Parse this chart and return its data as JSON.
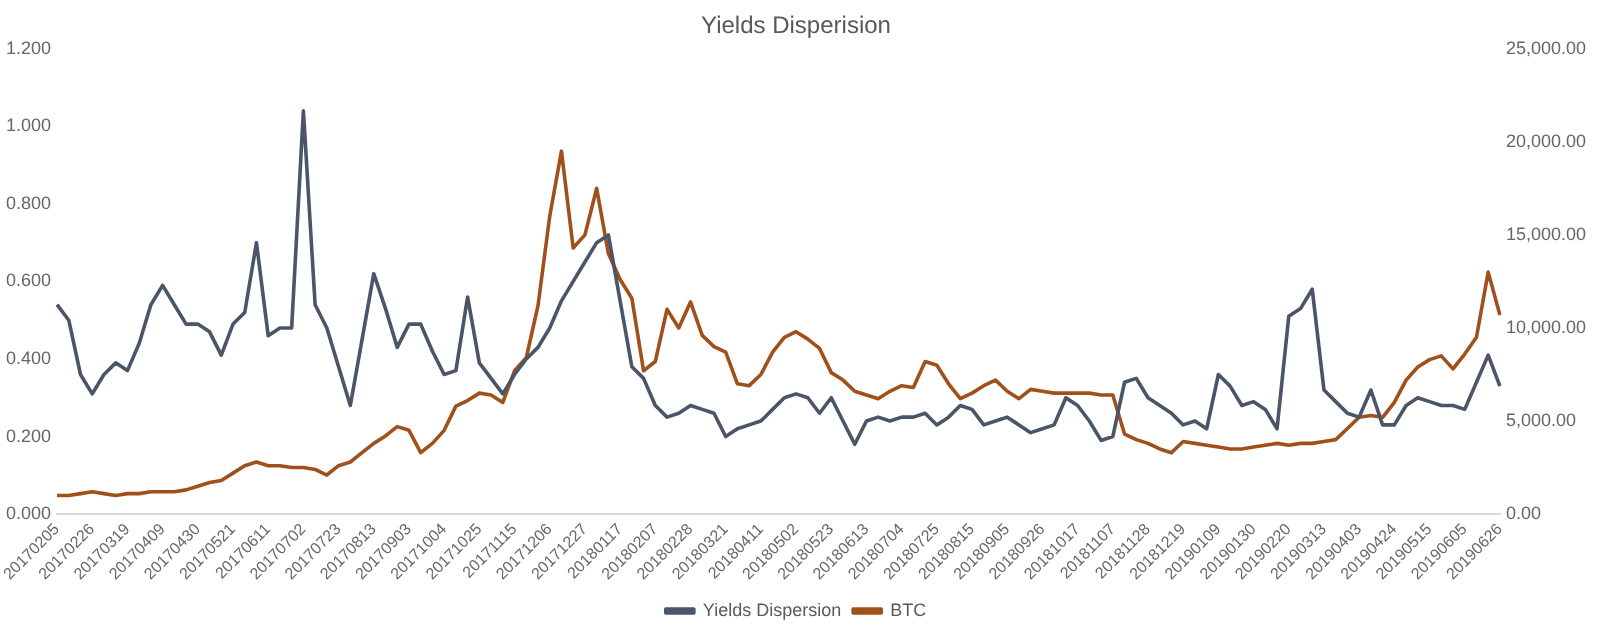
{
  "chart_data": {
    "type": "line",
    "title": "Yields Disperision",
    "categories": [
      "20170205",
      null,
      null,
      "20170226",
      null,
      null,
      "20170319",
      null,
      null,
      "20170409",
      null,
      null,
      "20170430",
      null,
      null,
      "20170521",
      null,
      null,
      "20170611",
      null,
      null,
      "20170702",
      null,
      null,
      "20170723",
      null,
      null,
      "20170813",
      null,
      null,
      "20170903",
      null,
      null,
      "20171004",
      null,
      null,
      "20171025",
      null,
      null,
      "20171115",
      null,
      null,
      "20171206",
      null,
      null,
      "20171227",
      null,
      null,
      "20180117",
      null,
      null,
      "20180207",
      null,
      null,
      "20180228",
      null,
      null,
      "20180321",
      null,
      null,
      "20180411",
      null,
      null,
      "20180502",
      null,
      null,
      "20180523",
      null,
      null,
      "20180613",
      null,
      null,
      "20180704",
      null,
      null,
      "20180725",
      null,
      null,
      "20180815",
      null,
      null,
      "20180905",
      null,
      null,
      "20180926",
      null,
      null,
      "20181017",
      null,
      null,
      "20181107",
      null,
      null,
      "20181128",
      null,
      null,
      "20181219",
      null,
      null,
      "20190109",
      null,
      null,
      "20190130",
      null,
      null,
      "20190220",
      null,
      null,
      "20190313",
      null,
      null,
      "20190403",
      null,
      null,
      "20190424",
      null,
      null,
      "20190515",
      null,
      null,
      "20190605",
      null,
      null,
      "20190626"
    ],
    "series": [
      {
        "name": "Yields Dispersion",
        "color": "#4a5568",
        "values": [
          0.54,
          0.5,
          0.36,
          0.31,
          0.36,
          0.39,
          0.37,
          0.44,
          0.54,
          0.59,
          0.54,
          0.49,
          0.49,
          0.47,
          0.41,
          0.49,
          0.52,
          0.7,
          0.46,
          0.48,
          0.48,
          1.04,
          0.54,
          0.48,
          0.38,
          0.28,
          0.45,
          0.62,
          0.53,
          0.43,
          0.49,
          0.49,
          0.42,
          0.36,
          0.37,
          0.56,
          0.39,
          0.35,
          0.31,
          0.36,
          0.4,
          0.43,
          0.48,
          0.55,
          0.6,
          0.65,
          0.7,
          0.72,
          0.55,
          0.38,
          0.35,
          0.28,
          0.25,
          0.26,
          0.28,
          0.27,
          0.26,
          0.2,
          0.22,
          0.23,
          0.24,
          0.27,
          0.3,
          0.31,
          0.3,
          0.26,
          0.3,
          0.24,
          0.18,
          0.24,
          0.25,
          0.24,
          0.25,
          0.25,
          0.26,
          0.23,
          0.25,
          0.28,
          0.27,
          0.23,
          0.24,
          0.25,
          0.23,
          0.21,
          0.22,
          0.23,
          0.3,
          0.28,
          0.24,
          0.19,
          0.2,
          0.34,
          0.35,
          0.3,
          0.28,
          0.26,
          0.23,
          0.24,
          0.22,
          0.36,
          0.33,
          0.28,
          0.29,
          0.27,
          0.22,
          0.51,
          0.53,
          0.58,
          0.32,
          0.29,
          0.26,
          0.25,
          0.32,
          0.23,
          0.23,
          0.28,
          0.3,
          0.29,
          0.28,
          0.28,
          0.27,
          0.34,
          0.41,
          0.33
        ]
      },
      {
        "name": "BTC",
        "color": "#a0501a",
        "axis": "y2",
        "values": [
          1000,
          1000,
          1100,
          1200,
          1100,
          1000,
          1100,
          1100,
          1200,
          1200,
          1200,
          1300,
          1500,
          1700,
          1800,
          2200,
          2600,
          2800,
          2600,
          2600,
          2500,
          2500,
          2400,
          2100,
          2600,
          2800,
          3300,
          3800,
          4200,
          4700,
          4500,
          3300,
          3800,
          4500,
          5800,
          6100,
          6500,
          6400,
          6000,
          7700,
          8400,
          11200,
          16000,
          19500,
          14300,
          15000,
          17500,
          14000,
          12600,
          11600,
          7700,
          8200,
          11000,
          10000,
          11400,
          9600,
          9000,
          8700,
          7000,
          6900,
          7500,
          8700,
          9500,
          9800,
          9400,
          8900,
          7600,
          7200,
          6600,
          6400,
          6200,
          6600,
          6900,
          6800,
          8200,
          8000,
          7000,
          6200,
          6500,
          6900,
          7200,
          6600,
          6200,
          6700,
          6600,
          6500,
          6500,
          6500,
          6500,
          6400,
          6400,
          4300,
          4000,
          3800,
          3500,
          3300,
          3900,
          3800,
          3700,
          3600,
          3500,
          3500,
          3600,
          3700,
          3800,
          3700,
          3800,
          3800,
          3900,
          4000,
          4600,
          5200,
          5300,
          5200,
          6000,
          7200,
          7900,
          8300,
          8500,
          7800,
          8600,
          9500,
          13000,
          10700
        ]
      }
    ],
    "ylim": [
      0,
      1.2
    ],
    "yticks": [
      {
        "value": 0,
        "label": "0.000"
      },
      {
        "value": 0.2,
        "label": "0.200"
      },
      {
        "value": 0.4,
        "label": "0.400"
      },
      {
        "value": 0.6,
        "label": "0.600"
      },
      {
        "value": 0.8,
        "label": "0.800"
      },
      {
        "value": 1,
        "label": "1.000"
      },
      {
        "value": 1.2,
        "label": "1.200"
      }
    ],
    "y2lim": [
      0,
      25000
    ],
    "y2ticks": [
      {
        "value": 0,
        "label": "0.00"
      },
      {
        "value": 5000,
        "label": "5,000.00"
      },
      {
        "value": 10000,
        "label": "10,000.00"
      },
      {
        "value": 15000,
        "label": "15,000.00"
      },
      {
        "value": 20000,
        "label": "20,000.00"
      },
      {
        "value": 25000,
        "label": "25,000.00"
      }
    ],
    "grid": false,
    "legend": "bottom",
    "marker": "none",
    "line_style": "solid"
  }
}
